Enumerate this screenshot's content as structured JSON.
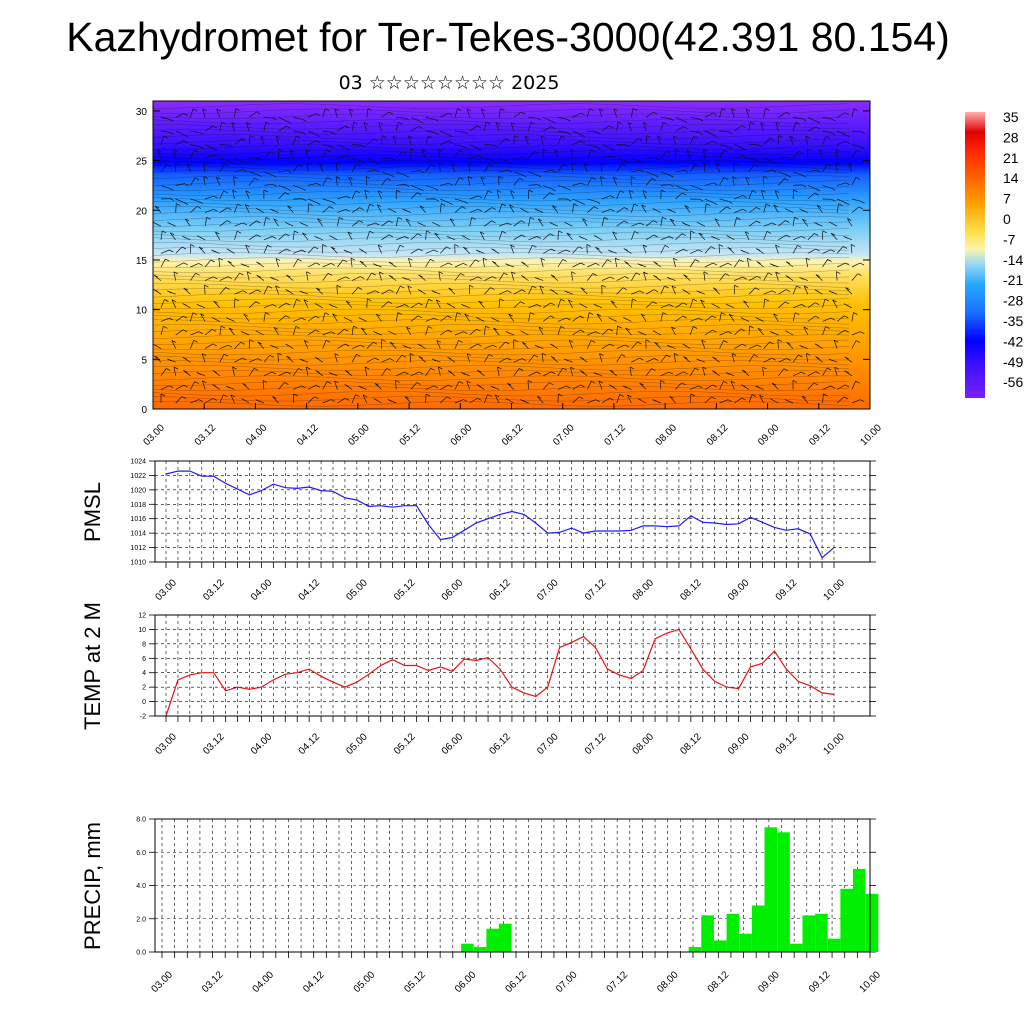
{
  "title": "Kazhydromet for Ter-Tekes-3000(42.391 80.154)",
  "subtitle": "03 ☆☆☆☆☆☆☆☆ 2025",
  "colors": {
    "pmsl_line": "#1a1aff",
    "temp_line": "#ee1111",
    "precip_bar": "#00ee00"
  },
  "chart_data": [
    {
      "type": "heatmap",
      "name": "cross-section",
      "x_labels": [
        "03.00",
        "03.12",
        "04.00",
        "04.12",
        "05.00",
        "05.12",
        "06.00",
        "06.12",
        "07.00",
        "07.12",
        "08.00",
        "08.12",
        "09.00",
        "09.12",
        "10.00"
      ],
      "y_ticks": [
        0,
        5,
        10,
        15,
        20,
        25,
        30
      ],
      "ylim": [
        0,
        31
      ],
      "colorbar_labels": [
        "35",
        "28",
        "21",
        "14",
        "7",
        "0",
        "-7",
        "-14",
        "-21",
        "-28",
        "-35",
        "-42",
        "-49",
        "-56"
      ],
      "colorbar_range": [
        -56,
        35
      ],
      "overlay": "wind barbs"
    },
    {
      "type": "line",
      "name": "pmsl",
      "ylabel": "PMSL",
      "y_ticks": [
        1010,
        1012,
        1014,
        1016,
        1018,
        1020,
        1022,
        1024
      ],
      "ylim": [
        1010,
        1024
      ],
      "x_labels": [
        "03.00",
        "03.12",
        "04.00",
        "04.12",
        "05.00",
        "05.12",
        "06.00",
        "06.12",
        "07.00",
        "07.12",
        "08.00",
        "08.12",
        "09.00",
        "09.12",
        "10.00"
      ],
      "values": [
        1022.2,
        1022.6,
        1022.6,
        1021.9,
        1021.9,
        1020.9,
        1020.1,
        1019.3,
        1019.9,
        1020.8,
        1020.3,
        1020.2,
        1020.4,
        1019.9,
        1019.8,
        1018.9,
        1018.6,
        1017.7,
        1017.8,
        1017.6,
        1017.8,
        1017.8,
        1015.2,
        1013.1,
        1013.4,
        1014.4,
        1015.4,
        1016.0,
        1016.6,
        1017.0,
        1016.6,
        1015.4,
        1014.0,
        1014.1,
        1014.7,
        1014.0,
        1014.3,
        1014.3,
        1014.3,
        1014.4,
        1015.0,
        1015.0,
        1014.9,
        1015.0,
        1016.4,
        1015.5,
        1015.4,
        1015.2,
        1015.3,
        1016.2,
        1015.5,
        1014.8,
        1014.4,
        1014.6,
        1013.9,
        1010.6,
        1012.0
      ]
    },
    {
      "type": "line",
      "name": "temp",
      "ylabel": "TEMP at 2 M",
      "y_ticks": [
        -2,
        0,
        2,
        4,
        6,
        8,
        10,
        12
      ],
      "ylim": [
        -2,
        12
      ],
      "x_labels": [
        "03.00",
        "03.12",
        "04.00",
        "04.12",
        "05.00",
        "05.12",
        "06.00",
        "06.12",
        "07.00",
        "07.12",
        "08.00",
        "08.12",
        "09.00",
        "09.12",
        "10.00"
      ],
      "values": [
        -2.0,
        3.0,
        3.7,
        4.0,
        4.0,
        1.5,
        2.0,
        1.7,
        2.0,
        3.0,
        3.8,
        4.0,
        4.5,
        3.5,
        2.7,
        2.0,
        2.7,
        3.8,
        5.0,
        5.8,
        5.0,
        5.0,
        4.3,
        4.8,
        4.2,
        5.9,
        5.7,
        6.1,
        4.5,
        2.0,
        1.2,
        0.7,
        2.0,
        7.5,
        8.2,
        9.0,
        7.5,
        4.5,
        3.7,
        3.2,
        4.3,
        8.7,
        9.5,
        10.0,
        7.3,
        4.5,
        2.8,
        2.0,
        1.8,
        4.8,
        5.3,
        7.0,
        4.5,
        2.8,
        2.2,
        1.2,
        1.0
      ]
    },
    {
      "type": "bar",
      "name": "precip",
      "ylabel": "PRECIP, mm",
      "y_ticks": [
        "0.0",
        "2.0",
        "4.0",
        "6.0",
        "8.0"
      ],
      "ylim": [
        0,
        8
      ],
      "x_labels": [
        "03.00",
        "03.12",
        "04.00",
        "04.12",
        "05.00",
        "05.12",
        "06.00",
        "06.12",
        "07.00",
        "07.12",
        "08.00",
        "08.12",
        "09.00",
        "09.12",
        "10.00"
      ],
      "values": [
        0,
        0,
        0,
        0,
        0,
        0,
        0,
        0,
        0,
        0,
        0,
        0,
        0,
        0,
        0,
        0,
        0,
        0,
        0,
        0,
        0,
        0,
        0,
        0,
        0.5,
        0.3,
        1.4,
        1.7,
        0,
        0,
        0,
        0,
        0,
        0,
        0,
        0,
        0,
        0,
        0,
        0,
        0,
        0,
        0.3,
        2.2,
        0.7,
        2.3,
        1.1,
        2.8,
        7.5,
        7.2,
        0.5,
        2.2,
        2.3,
        0.8,
        3.8,
        5.0,
        3.5
      ]
    }
  ]
}
